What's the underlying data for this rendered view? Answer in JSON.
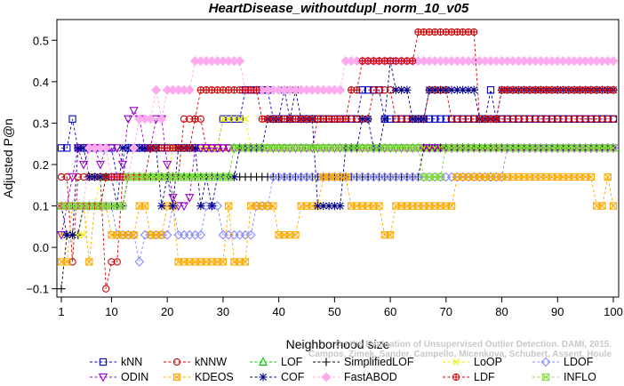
{
  "chart_data": {
    "type": "line",
    "title": "HeartDisease_withoutdupl_norm_10_v05",
    "xlabel": "Neighborhood size",
    "ylabel": "Adjusted P@n",
    "xlim": [
      1,
      100
    ],
    "ylim": [
      -0.12,
      0.55
    ],
    "xticks": [
      1,
      10,
      20,
      30,
      40,
      50,
      60,
      70,
      80,
      90,
      100
    ],
    "xtick_labels": [
      "1",
      "10",
      "20",
      "30",
      "40",
      "50",
      "60",
      "70",
      "80",
      "90",
      "100"
    ],
    "yticks": [
      -0.1,
      0.0,
      0.1,
      0.2,
      0.3,
      0.4,
      0.5
    ],
    "ytick_labels": [
      "−0.1",
      "0.0",
      "0.1",
      "0.2",
      "0.3",
      "0.4",
      "0.5"
    ],
    "grid": false,
    "legend_position": "bottom",
    "credit": [
      "Campos, Zimek, Sander, Campello, Micenkova, Schubert, Assent, Houle",
      "On the Evaluation of Unsupervised Outlier Detection. DAMI, 2015."
    ],
    "series": [
      {
        "name": "kNN",
        "color": "#0000cc",
        "marker": "square",
        "segments": [
          [
            1,
            0.24
          ],
          [
            2,
            0.24
          ],
          [
            3,
            0.31
          ],
          [
            4,
            0.24
          ],
          [
            10,
            0.24
          ],
          [
            11,
            0.17
          ],
          [
            13,
            0.24
          ],
          [
            29,
            0.24
          ],
          [
            30,
            0.31
          ],
          [
            33,
            0.31
          ],
          [
            34,
            0.38
          ],
          [
            38,
            0.38
          ],
          [
            39,
            0.31
          ],
          [
            54,
            0.31
          ],
          [
            55,
            0.38
          ],
          [
            58,
            0.38
          ],
          [
            59,
            0.31
          ],
          [
            77,
            0.31
          ],
          [
            78,
            0.38
          ],
          [
            79,
            0.31
          ],
          [
            100,
            0.31
          ]
        ]
      },
      {
        "name": "kNNW",
        "color": "#cc0000",
        "marker": "circle",
        "segments": [
          [
            1,
            0.17
          ],
          [
            2,
            0.17
          ],
          [
            3,
            -0.035
          ],
          [
            4,
            0.17
          ],
          [
            8,
            0.17
          ],
          [
            9,
            -0.1
          ],
          [
            10,
            -0.035
          ],
          [
            11,
            -0.035
          ],
          [
            12,
            0.17
          ],
          [
            22,
            0.17
          ],
          [
            23,
            0.31
          ],
          [
            26,
            0.31
          ],
          [
            27,
            0.24
          ],
          [
            46,
            0.24
          ],
          [
            47,
            0.31
          ],
          [
            56,
            0.31
          ],
          [
            57,
            0.38
          ],
          [
            60,
            0.38
          ],
          [
            61,
            0.31
          ],
          [
            66,
            0.31
          ],
          [
            67,
            0.38
          ],
          [
            70,
            0.38
          ],
          [
            71,
            0.31
          ],
          [
            100,
            0.31
          ]
        ]
      },
      {
        "name": "LOF",
        "color": "#00cc00",
        "marker": "triangle-up",
        "segments": [
          [
            1,
            0.1
          ],
          [
            8,
            0.1
          ],
          [
            9,
            0.17
          ],
          [
            31,
            0.17
          ],
          [
            32,
            0.24
          ],
          [
            47,
            0.24
          ],
          [
            48,
            0.24
          ],
          [
            100,
            0.24
          ]
        ]
      },
      {
        "name": "SimplifiedLOF",
        "color": "#000000",
        "marker": "plus",
        "segments": [
          [
            1,
            -0.1
          ],
          [
            2,
            0.03
          ],
          [
            4,
            0.03
          ],
          [
            5,
            0.1
          ],
          [
            6,
            0.1
          ],
          [
            7,
            0.1
          ],
          [
            12,
            0.1
          ],
          [
            13,
            0.17
          ],
          [
            38,
            0.17
          ],
          [
            39,
            0.17
          ],
          [
            40,
            0.17
          ],
          [
            41,
            0.17
          ],
          [
            62,
            0.17
          ],
          [
            63,
            0.17
          ],
          [
            64,
            0.17
          ],
          [
            65,
            0.17
          ],
          [
            66,
            0.24
          ],
          [
            100,
            0.24
          ]
        ]
      },
      {
        "name": "LoOP",
        "color": "#eeee00",
        "marker": "x",
        "segments": [
          [
            1,
            0.03
          ],
          [
            5,
            0.03
          ],
          [
            6,
            0.1
          ],
          [
            7,
            0.1
          ],
          [
            8,
            0.17
          ],
          [
            20,
            0.17
          ],
          [
            21,
            0.24
          ],
          [
            29,
            0.24
          ],
          [
            30,
            0.31
          ],
          [
            34,
            0.31
          ],
          [
            35,
            0.24
          ],
          [
            54,
            0.24
          ],
          [
            55,
            0.24
          ],
          [
            100,
            0.24
          ]
        ]
      },
      {
        "name": "LDOF",
        "color": "#8888ff",
        "marker": "diamond",
        "segments": [
          [
            1,
            0.1
          ],
          [
            10,
            0.1
          ],
          [
            11,
            0.03
          ],
          [
            14,
            0.03
          ],
          [
            15,
            -0.035
          ],
          [
            16,
            0.03
          ],
          [
            18,
            0.03
          ],
          [
            20,
            0.03
          ],
          [
            21,
            0.1
          ],
          [
            22,
            0.03
          ],
          [
            26,
            0.03
          ],
          [
            27,
            0.1
          ],
          [
            29,
            0.1
          ],
          [
            30,
            0.03
          ],
          [
            35,
            0.03
          ],
          [
            36,
            0.1
          ],
          [
            38,
            0.1
          ],
          [
            39,
            0.17
          ],
          [
            66,
            0.17
          ],
          [
            67,
            0.17
          ],
          [
            68,
            0.17
          ],
          [
            69,
            0.17
          ],
          [
            70,
            0.17
          ],
          [
            80,
            0.17
          ],
          [
            81,
            0.24
          ],
          [
            100,
            0.24
          ]
        ]
      },
      {
        "name": "ODIN",
        "color": "#9900cc",
        "marker": "triangle-down",
        "segments": [
          [
            1,
            0.03
          ],
          [
            2,
            0.1
          ],
          [
            3,
            0.17
          ],
          [
            4,
            0.24
          ],
          [
            5,
            0.2
          ],
          [
            6,
            0.24
          ],
          [
            7,
            0.24
          ],
          [
            8,
            0.2
          ],
          [
            9,
            0.24
          ],
          [
            11,
            0.24
          ],
          [
            12,
            0.2
          ],
          [
            13,
            0.31
          ],
          [
            14,
            0.33
          ],
          [
            15,
            0.31
          ],
          [
            16,
            0.24
          ],
          [
            18,
            0.31
          ],
          [
            19,
            0.31
          ],
          [
            20,
            0.2
          ],
          [
            21,
            0.12
          ],
          [
            22,
            0.1
          ],
          [
            24,
            0.12
          ],
          [
            25,
            0.24
          ],
          [
            100,
            0.24
          ]
        ]
      },
      {
        "name": "KDEOS",
        "color": "#ffaa00",
        "marker": "square-x",
        "segments": [
          [
            1,
            -0.035
          ],
          [
            2,
            -0.035
          ],
          [
            3,
            0.1
          ],
          [
            5,
            0.1
          ],
          [
            6,
            -0.035
          ],
          [
            7,
            0.1
          ],
          [
            8,
            0.1
          ],
          [
            10,
            0.03
          ],
          [
            14,
            0.03
          ],
          [
            15,
            0.1
          ],
          [
            16,
            0.1
          ],
          [
            17,
            0.03
          ],
          [
            19,
            0.03
          ],
          [
            20,
            0.1
          ],
          [
            21,
            0.1
          ],
          [
            22,
            -0.035
          ],
          [
            30,
            -0.035
          ],
          [
            31,
            0.1
          ],
          [
            32,
            -0.035
          ],
          [
            34,
            -0.035
          ],
          [
            35,
            0.1
          ],
          [
            39,
            0.1
          ],
          [
            40,
            0.03
          ],
          [
            43,
            0.03
          ],
          [
            44,
            0.1
          ],
          [
            47,
            0.1
          ],
          [
            48,
            0.17
          ],
          [
            52,
            0.17
          ],
          [
            53,
            0.1
          ],
          [
            58,
            0.1
          ],
          [
            59,
            0.03
          ],
          [
            60,
            0.03
          ],
          [
            61,
            0.1
          ],
          [
            65,
            0.1
          ],
          [
            66,
            0.1
          ],
          [
            71,
            0.1
          ],
          [
            72,
            0.17
          ],
          [
            96,
            0.17
          ],
          [
            97,
            0.1
          ],
          [
            98,
            0.1
          ],
          [
            99,
            0.17
          ],
          [
            100,
            0.1
          ]
        ]
      },
      {
        "name": "COF",
        "color": "#000088",
        "marker": "asterisk",
        "segments": [
          [
            1,
            0.1
          ],
          [
            2,
            0.03
          ],
          [
            3,
            0.03
          ],
          [
            4,
            0.24
          ],
          [
            5,
            0.24
          ],
          [
            6,
            0.17
          ],
          [
            10,
            0.17
          ],
          [
            11,
            0.1
          ],
          [
            12,
            0.24
          ],
          [
            18,
            0.24
          ],
          [
            19,
            0.1
          ],
          [
            20,
            0.17
          ],
          [
            21,
            0.1
          ],
          [
            22,
            0.24
          ],
          [
            25,
            0.24
          ],
          [
            26,
            0.1
          ],
          [
            27,
            0.17
          ],
          [
            28,
            0.1
          ],
          [
            29,
            0.17
          ],
          [
            32,
            0.17
          ],
          [
            33,
            0.24
          ],
          [
            37,
            0.24
          ],
          [
            38,
            0.31
          ],
          [
            40,
            0.31
          ],
          [
            41,
            0.38
          ],
          [
            42,
            0.31
          ],
          [
            43,
            0.38
          ],
          [
            44,
            0.31
          ],
          [
            46,
            0.31
          ],
          [
            47,
            0.1
          ],
          [
            48,
            0.1
          ],
          [
            51,
            0.1
          ],
          [
            52,
            0.24
          ],
          [
            54,
            0.24
          ],
          [
            55,
            0.31
          ],
          [
            57,
            0.24
          ],
          [
            59,
            0.31
          ],
          [
            60,
            0.45
          ],
          [
            61,
            0.38
          ],
          [
            63,
            0.38
          ],
          [
            64,
            0.31
          ],
          [
            67,
            0.38
          ],
          [
            75,
            0.38
          ],
          [
            76,
            0.31
          ],
          [
            79,
            0.31
          ],
          [
            80,
            0.38
          ],
          [
            100,
            0.38
          ]
        ]
      },
      {
        "name": "FastABOD",
        "color": "#ffaaee",
        "marker": "diamond-filled",
        "segments": [
          [
            1,
            0.1
          ],
          [
            5,
            0.1
          ],
          [
            6,
            0.24
          ],
          [
            9,
            0.24
          ],
          [
            10,
            0.17
          ],
          [
            13,
            0.17
          ],
          [
            14,
            0.24
          ],
          [
            15,
            0.31
          ],
          [
            17,
            0.31
          ],
          [
            18,
            0.38
          ],
          [
            19,
            0.31
          ],
          [
            20,
            0.38
          ],
          [
            22,
            0.38
          ],
          [
            23,
            0.38
          ],
          [
            25,
            0.45
          ],
          [
            33,
            0.45
          ],
          [
            34,
            0.38
          ],
          [
            51,
            0.38
          ],
          [
            52,
            0.45
          ],
          [
            100,
            0.45
          ]
        ]
      },
      {
        "name": "LDF",
        "color": "#cc0000",
        "marker": "circle-plus",
        "segments": [
          [
            1,
            0.1
          ],
          [
            8,
            0.1
          ],
          [
            9,
            0.17
          ],
          [
            16,
            0.17
          ],
          [
            17,
            0.24
          ],
          [
            24,
            0.24
          ],
          [
            25,
            0.31
          ],
          [
            26,
            0.38
          ],
          [
            36,
            0.38
          ],
          [
            37,
            0.31
          ],
          [
            52,
            0.31
          ],
          [
            53,
            0.38
          ],
          [
            54,
            0.38
          ],
          [
            55,
            0.45
          ],
          [
            58,
            0.45
          ],
          [
            61,
            0.45
          ],
          [
            62,
            0.45
          ],
          [
            65,
            0.52
          ],
          [
            75,
            0.52
          ],
          [
            76,
            0.31
          ],
          [
            79,
            0.31
          ],
          [
            80,
            0.38
          ],
          [
            100,
            0.38
          ]
        ]
      },
      {
        "name": "INFLO",
        "color": "#88dd44",
        "marker": "square-x",
        "segments": [
          [
            1,
            0.1
          ],
          [
            12,
            0.1
          ],
          [
            13,
            0.17
          ],
          [
            31,
            0.17
          ],
          [
            32,
            0.24
          ],
          [
            47,
            0.24
          ],
          [
            48,
            0.24
          ],
          [
            65,
            0.24
          ],
          [
            66,
            0.17
          ],
          [
            69,
            0.17
          ],
          [
            70,
            0.24
          ],
          [
            100,
            0.24
          ]
        ]
      }
    ]
  }
}
